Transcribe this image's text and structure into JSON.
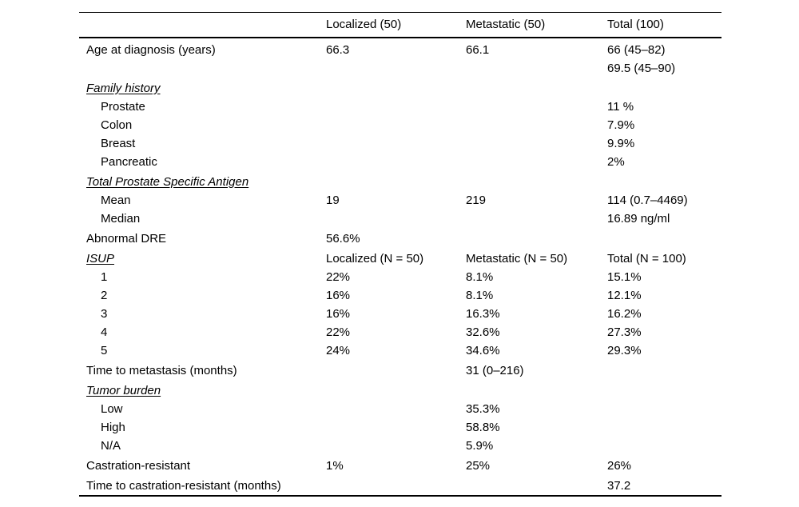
{
  "page": {
    "background": "#ffffff",
    "text_color": "#000000",
    "rule_color": "#000000"
  },
  "table": {
    "columns": [
      "",
      "Localized (50)",
      "Metastatic (50)",
      "Total (100)"
    ],
    "rows": [
      {
        "label": "Age at diagnosis (years)",
        "section": false,
        "indent": false,
        "localized": "66.3",
        "metastatic": "66.1",
        "total": "66 (45–82)\n69.5 (45–90)"
      },
      {
        "label": "Family history",
        "section": true,
        "indent": false,
        "localized": "",
        "metastatic": "",
        "total": ""
      },
      {
        "label": "Prostate",
        "section": false,
        "indent": true,
        "localized": "",
        "metastatic": "",
        "total": "11 %"
      },
      {
        "label": "Colon",
        "section": false,
        "indent": true,
        "localized": "",
        "metastatic": "",
        "total": "7.9%"
      },
      {
        "label": "Breast",
        "section": false,
        "indent": true,
        "localized": "",
        "metastatic": "",
        "total": "9.9%"
      },
      {
        "label": "Pancreatic",
        "section": false,
        "indent": true,
        "localized": "",
        "metastatic": "",
        "total": "2%"
      },
      {
        "label": "Total Prostate Specific Antigen",
        "section": true,
        "indent": false,
        "localized": "",
        "metastatic": "",
        "total": ""
      },
      {
        "label": "Mean",
        "section": false,
        "indent": true,
        "localized": "19",
        "metastatic": "219",
        "total": "114 (0.7–4469)"
      },
      {
        "label": "Median",
        "section": false,
        "indent": true,
        "localized": "",
        "metastatic": "",
        "total": "16.89 ng/ml"
      },
      {
        "label": "Abnormal DRE",
        "section": false,
        "indent": false,
        "localized": "56.6%",
        "metastatic": "",
        "total": ""
      },
      {
        "label": "ISUP",
        "section": true,
        "indent": false,
        "localized": "Localized (N = 50)",
        "metastatic": "Metastatic (N = 50)",
        "total": "Total (N = 100)"
      },
      {
        "label": "1",
        "section": false,
        "indent": true,
        "localized": "22%",
        "metastatic": "8.1%",
        "total": "15.1%"
      },
      {
        "label": "2",
        "section": false,
        "indent": true,
        "localized": "16%",
        "metastatic": "8.1%",
        "total": "12.1%"
      },
      {
        "label": "3",
        "section": false,
        "indent": true,
        "localized": "16%",
        "metastatic": "16.3%",
        "total": "16.2%"
      },
      {
        "label": "4",
        "section": false,
        "indent": true,
        "localized": "22%",
        "metastatic": "32.6%",
        "total": "27.3%"
      },
      {
        "label": "5",
        "section": false,
        "indent": true,
        "localized": "24%",
        "metastatic": "34.6%",
        "total": "29.3%"
      },
      {
        "label": "Time to metastasis (months)",
        "section": false,
        "indent": false,
        "localized": "",
        "metastatic": "31 (0–216)",
        "total": ""
      },
      {
        "label": "Tumor burden",
        "section": true,
        "indent": false,
        "localized": "",
        "metastatic": "",
        "total": ""
      },
      {
        "label": "Low",
        "section": false,
        "indent": true,
        "localized": "",
        "metastatic": "35.3%",
        "total": ""
      },
      {
        "label": "High",
        "section": false,
        "indent": true,
        "localized": "",
        "metastatic": "58.8%",
        "total": ""
      },
      {
        "label": "N/A",
        "section": false,
        "indent": true,
        "localized": "",
        "metastatic": "5.9%",
        "total": ""
      },
      {
        "label": "Castration-resistant",
        "section": false,
        "indent": false,
        "localized": "1%",
        "metastatic": "25%",
        "total": "26%"
      },
      {
        "label": "Time to castration-resistant (months)",
        "section": false,
        "indent": false,
        "localized": "",
        "metastatic": "",
        "total": "37.2"
      }
    ]
  }
}
